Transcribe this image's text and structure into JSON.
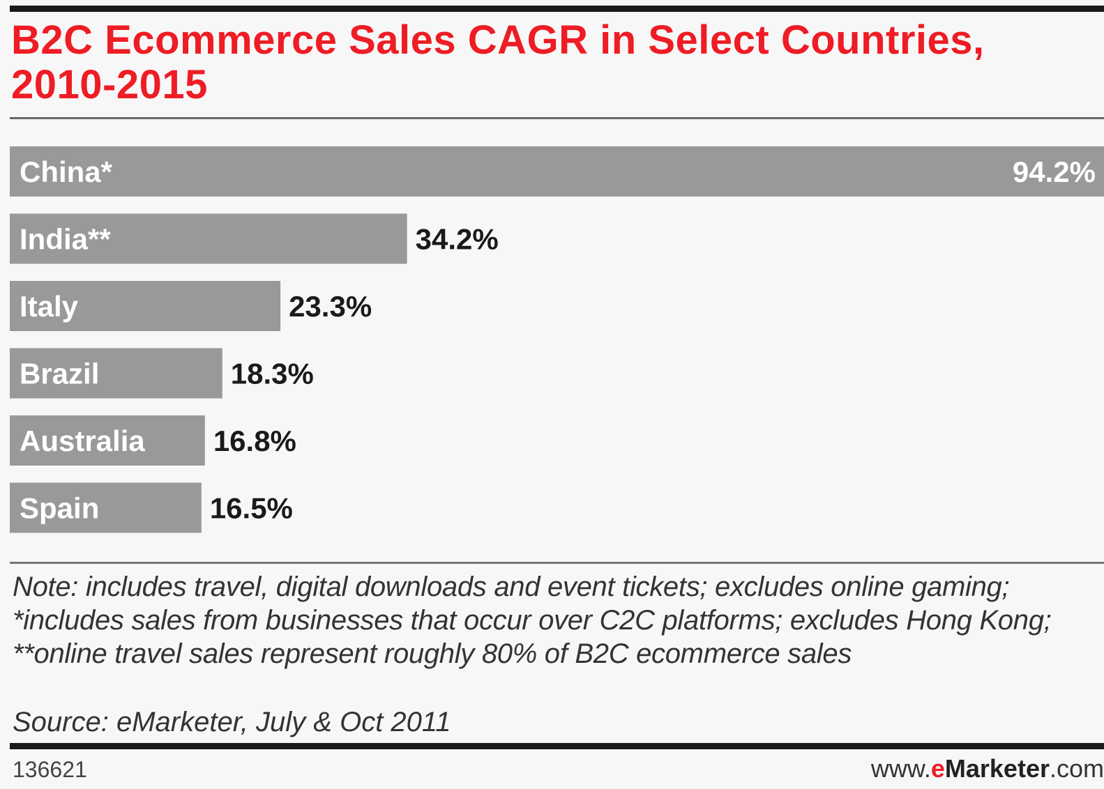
{
  "title": "B2C Ecommerce Sales CAGR in Select Countries, 2010-2015",
  "note": "Note: includes travel, digital downloads and event tickets; excludes online gaming; *includes sales from businesses that occur over C2C platforms; excludes Hong Kong; **online travel sales represent roughly 80% of B2C ecommerce sales",
  "source": "Source: eMarketer, July & Oct 2011",
  "chart_id": "136621",
  "brand": {
    "prefix": "www.",
    "accent": "e",
    "name": "Marketer",
    "suffix": ".com"
  },
  "colors": {
    "title": "#ee1c24",
    "bar": "#999999",
    "bar_label": "#ffffff",
    "value_label": "#1a1a1a"
  },
  "chart_data": {
    "type": "bar",
    "orientation": "horizontal",
    "title": "B2C Ecommerce Sales CAGR in Select Countries, 2010-2015",
    "categories": [
      "China*",
      "India**",
      "Italy",
      "Brazil",
      "Australia",
      "Spain"
    ],
    "values": [
      94.2,
      34.2,
      23.3,
      18.3,
      16.8,
      16.5
    ],
    "value_labels": [
      "94.2%",
      "34.2%",
      "23.3%",
      "18.3%",
      "16.8%",
      "16.5%"
    ],
    "unit": "%",
    "xlim": [
      0,
      94.2
    ],
    "grid": false,
    "legend": "none"
  }
}
